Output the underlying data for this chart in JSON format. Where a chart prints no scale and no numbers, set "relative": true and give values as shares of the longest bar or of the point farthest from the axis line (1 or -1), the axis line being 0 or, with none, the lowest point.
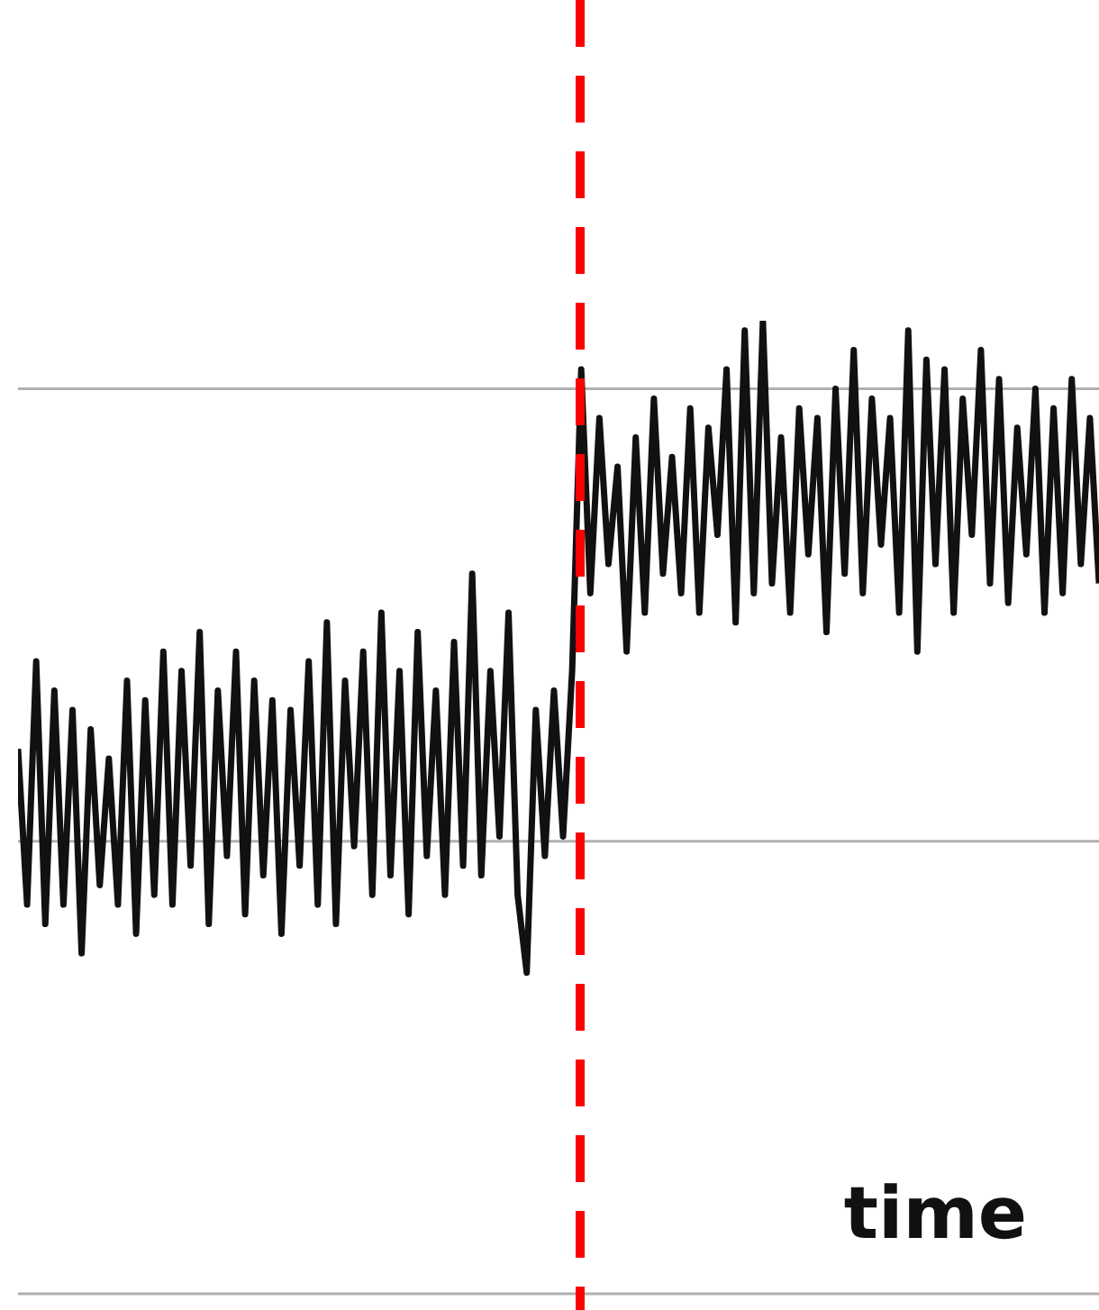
{
  "chart_data": {
    "type": "line",
    "relative": true,
    "xlabel": "time",
    "categories": [
      null,
      null,
      null,
      null,
      null,
      null,
      null,
      null,
      null,
      null,
      null,
      null,
      null,
      null,
      null,
      null,
      null,
      null,
      null,
      null,
      null,
      null,
      null,
      null,
      null,
      null,
      null,
      null,
      null,
      null,
      null,
      null,
      null,
      null,
      null,
      null,
      null,
      null,
      null,
      null,
      null,
      null,
      null,
      null,
      null,
      null,
      null,
      null,
      null,
      null,
      null,
      null,
      null,
      null,
      null,
      null,
      null,
      null,
      null,
      null,
      null,
      null,
      null,
      null,
      null,
      null,
      null,
      null,
      null,
      null,
      null,
      null,
      null,
      null,
      null,
      null,
      null,
      null,
      null,
      null,
      null,
      null,
      null,
      null,
      null,
      null,
      null,
      null,
      null,
      null,
      null,
      null,
      null,
      null,
      null,
      null,
      null,
      null,
      null,
      null,
      null,
      null,
      null,
      null,
      null,
      null,
      null,
      null,
      null,
      null,
      null,
      null,
      null,
      null,
      null,
      null,
      null,
      null,
      null,
      null
    ],
    "series": [
      {
        "color": "#111111",
        "values": [
          0.56,
          0.4,
          0.65,
          0.38,
          0.62,
          0.4,
          0.6,
          0.35,
          0.58,
          0.42,
          0.55,
          0.4,
          0.63,
          0.37,
          0.61,
          0.41,
          0.66,
          0.4,
          0.64,
          0.44,
          0.68,
          0.38,
          0.62,
          0.45,
          0.66,
          0.39,
          0.63,
          0.43,
          0.61,
          0.37,
          0.6,
          0.44,
          0.65,
          0.4,
          0.69,
          0.38,
          0.63,
          0.46,
          0.66,
          0.41,
          0.7,
          0.43,
          0.64,
          0.39,
          0.68,
          0.45,
          0.62,
          0.41,
          0.67,
          0.44,
          0.74,
          0.43,
          0.64,
          0.47,
          0.7,
          0.41,
          0.33,
          0.6,
          0.45,
          0.62,
          0.47,
          0.64,
          0.95,
          0.72,
          0.9,
          0.75,
          0.85,
          0.66,
          0.88,
          0.7,
          0.92,
          0.74,
          0.86,
          0.72,
          0.91,
          0.7,
          0.89,
          0.78,
          0.95,
          0.69,
          0.99,
          0.72,
          1.0,
          0.73,
          0.88,
          0.7,
          0.91,
          0.76,
          0.9,
          0.68,
          0.93,
          0.74,
          0.97,
          0.72,
          0.92,
          0.77,
          0.9,
          0.7,
          0.99,
          0.66,
          0.96,
          0.75,
          0.95,
          0.7,
          0.92,
          0.78,
          0.97,
          0.73,
          0.94,
          0.71,
          0.89,
          0.76,
          0.93,
          0.7,
          0.91,
          0.72,
          0.94,
          0.75,
          0.9,
          0.73
        ]
      }
    ],
    "ref_lines": [
      {
        "axis": "y",
        "value": 0.465,
        "color": "#b0b0b0",
        "line_style": "solid"
      },
      {
        "axis": "y",
        "value": 0.93,
        "color": "#b0b0b0",
        "line_style": "solid"
      }
    ],
    "marker": "none",
    "line_style": "solid"
  }
}
